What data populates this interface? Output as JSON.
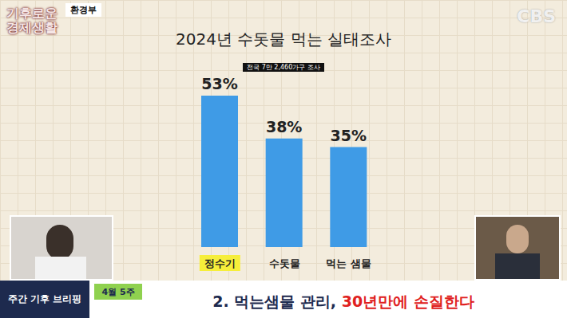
{
  "chart_data": {
    "type": "bar",
    "title": "2024년 수돗물 먹는 실태조사",
    "subtitle": "전국 7만 2,460가구 조사",
    "categories": [
      "정수기",
      "수돗물",
      "먹는 샘물"
    ],
    "values": [
      53,
      38,
      35
    ],
    "value_labels": [
      "53%",
      "38%",
      "35%"
    ],
    "color": "#3f9be6",
    "ylim": [
      0,
      60
    ],
    "data_labels": true,
    "tick_labels": "x",
    "grid": false
  },
  "header": {
    "source": "환경부",
    "logo": [
      "기후로운",
      "경제생활"
    ],
    "channel": "CBS"
  },
  "footer": {
    "section": "주간 기후 브리핑",
    "date": "4월 5주",
    "title_parts": [
      "2. 먹는샘물 관리,",
      "30년만에 손질한다"
    ]
  }
}
